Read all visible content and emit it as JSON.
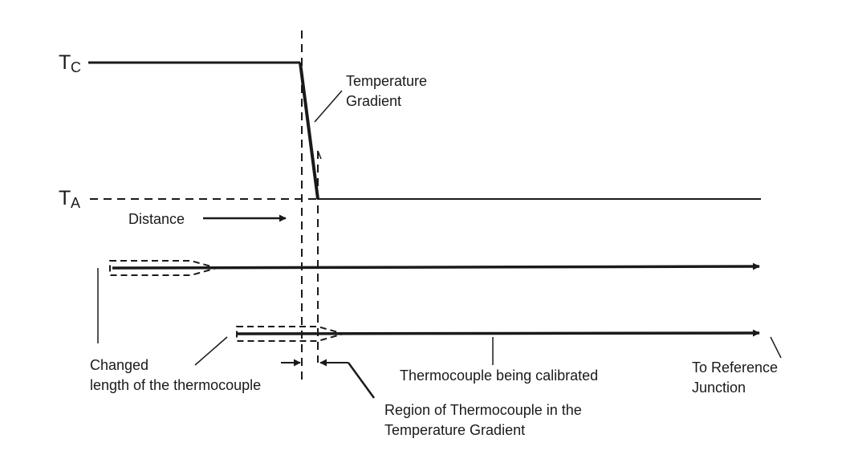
{
  "levels": {
    "tc": {
      "main": "T",
      "sub": "C"
    },
    "ta": {
      "main": "T",
      "sub": "A"
    }
  },
  "labels": {
    "temperature_gradient": [
      "Temperature",
      "Gradient"
    ],
    "distance": "Distance",
    "changed_length": [
      "Changed",
      "length of the thermocouple"
    ],
    "thermocouple_calibrated": "Thermocouple being calibrated",
    "reference_junction": [
      "To Reference",
      "Junction"
    ],
    "region_gradient": [
      "Region of Thermocouple in the",
      "Temperature Gradient"
    ]
  },
  "colors": {
    "ink": "#1a1a1a",
    "background": "#ffffff"
  }
}
